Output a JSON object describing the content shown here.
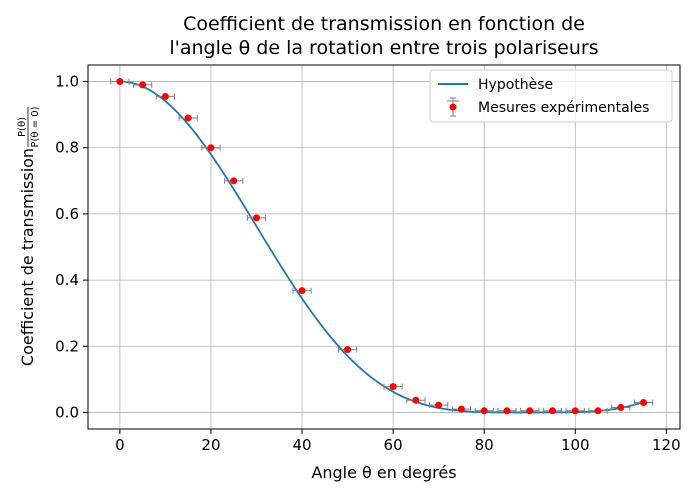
{
  "chart_data": {
    "type": "line",
    "title_line1": "Coefficient de transmission en fonction de",
    "title_line2": "l'angle θ de la rotation entre trois polariseurs",
    "xlabel": "Angle θ en degrés",
    "ylabel": "Coefficient de transmission",
    "ylabel_fraction_num": "P(θ)",
    "ylabel_fraction_den": "P(θ = 0)",
    "xlim": [
      -7,
      123
    ],
    "ylim": [
      -0.05,
      1.05
    ],
    "x_ticks": [
      0,
      20,
      40,
      60,
      80,
      100,
      120
    ],
    "y_ticks": [
      0.0,
      0.2,
      0.4,
      0.6,
      0.8,
      1.0
    ],
    "x_tick_labels": [
      "0",
      "20",
      "40",
      "60",
      "80",
      "100",
      "120"
    ],
    "y_tick_labels": [
      "0.0",
      "0.2",
      "0.4",
      "0.6",
      "0.8",
      "1.0"
    ],
    "grid": true,
    "legend_position": "top-right",
    "series": [
      {
        "name": "Hypothèse",
        "kind": "line",
        "color": "#1f77b4",
        "formula": "cos^2(θ) · cos^2(90° − θ) normalised",
        "x_range": [
          0,
          115
        ]
      },
      {
        "name": "Mesures expérimentales",
        "kind": "scatter-errorbar",
        "marker_color": "#ff0000",
        "errorbar_color": "#808080",
        "x_error": 2,
        "x": [
          0,
          5,
          10,
          15,
          20,
          25,
          30,
          40,
          50,
          60,
          65,
          70,
          75,
          80,
          85,
          90,
          95,
          100,
          105,
          110,
          115
        ],
        "y": [
          1.0,
          0.99,
          0.955,
          0.89,
          0.8,
          0.7,
          0.588,
          0.368,
          0.19,
          0.078,
          0.037,
          0.022,
          0.01,
          0.005,
          0.005,
          0.005,
          0.005,
          0.005,
          0.005,
          0.015,
          0.03
        ]
      }
    ]
  }
}
